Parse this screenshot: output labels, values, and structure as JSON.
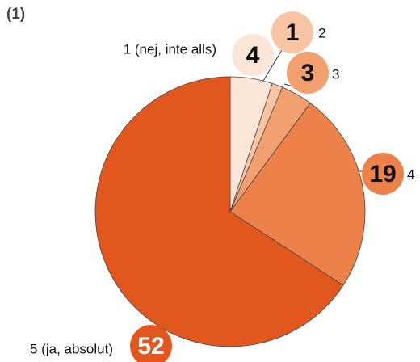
{
  "chart_data": {
    "type": "pie",
    "title": "(1)",
    "categories": [
      "1 (nej, inte alls)",
      "2",
      "3",
      "4",
      "5 (ja, absolut)"
    ],
    "values": [
      4,
      1,
      3,
      19,
      52
    ],
    "colors": [
      "#fbe5d6",
      "#f8c4a4",
      "#f2a070",
      "#ec8149",
      "#e2571e"
    ]
  }
}
